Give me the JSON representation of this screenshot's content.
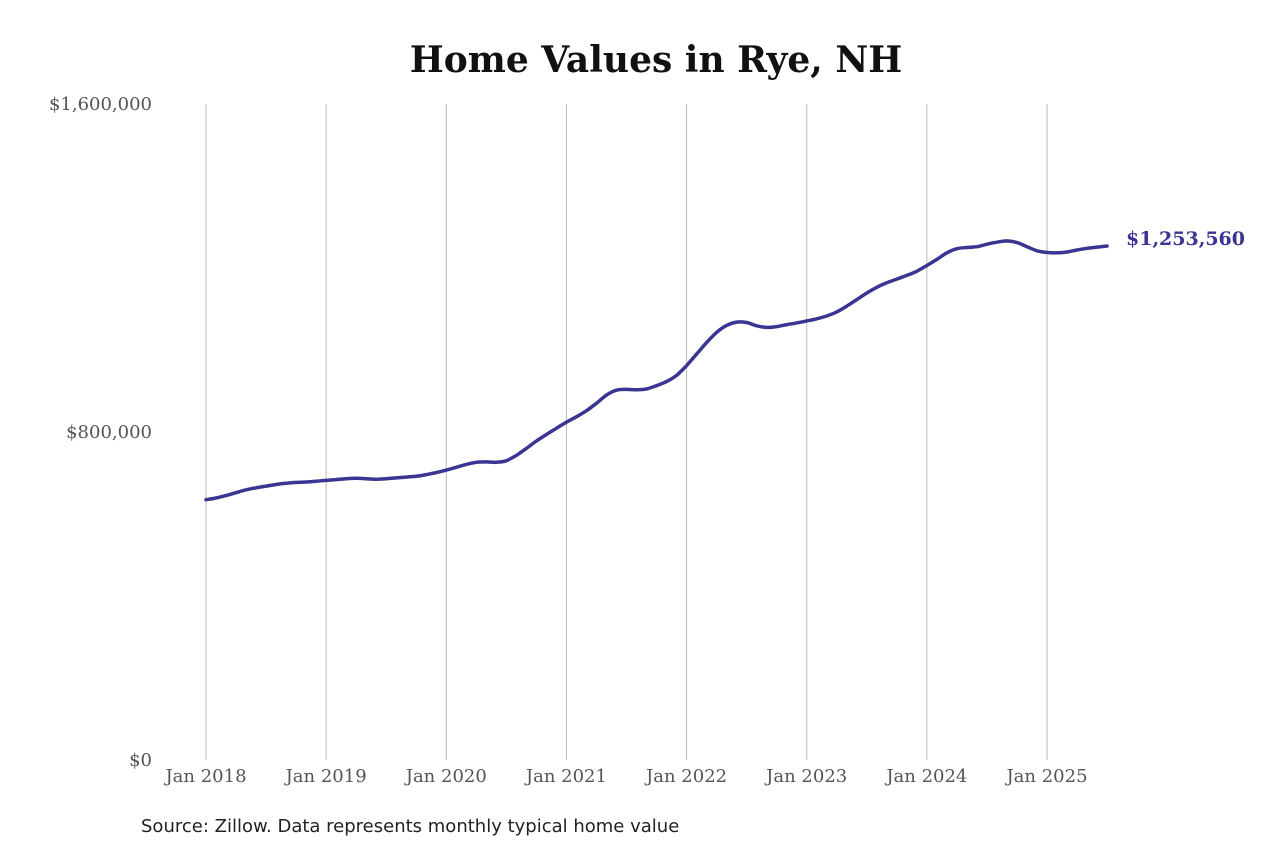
{
  "chart_data": {
    "type": "line",
    "title": "Home Values in Rye, NH",
    "xlabel": "",
    "ylabel": "",
    "ylim": [
      0,
      1600000
    ],
    "y_ticks": [
      {
        "value": 0,
        "label": "$0"
      },
      {
        "value": 800000,
        "label": "$800,000"
      },
      {
        "value": 1600000,
        "label": "$1,600,000"
      }
    ],
    "x_ticks": [
      {
        "value": "2018-01",
        "label": "Jan 2018"
      },
      {
        "value": "2019-01",
        "label": "Jan 2019"
      },
      {
        "value": "2020-01",
        "label": "Jan 2020"
      },
      {
        "value": "2021-01",
        "label": "Jan 2021"
      },
      {
        "value": "2022-01",
        "label": "Jan 2022"
      },
      {
        "value": "2023-01",
        "label": "Jan 2023"
      },
      {
        "value": "2024-01",
        "label": "Jan 2024"
      },
      {
        "value": "2025-01",
        "label": "Jan 2025"
      }
    ],
    "grid": {
      "vertical": true,
      "horizontal": false
    },
    "line_color": "#3a3592",
    "end_label": "$1,253,560",
    "series": [
      {
        "x": [
          "2018-01",
          "2018-02",
          "2018-03",
          "2018-04",
          "2018-05",
          "2018-06",
          "2018-07",
          "2018-08",
          "2018-09",
          "2018-10",
          "2018-11",
          "2018-12",
          "2019-01",
          "2019-02",
          "2019-03",
          "2019-04",
          "2019-05",
          "2019-06",
          "2019-07",
          "2019-08",
          "2019-09",
          "2019-10",
          "2019-11",
          "2019-12",
          "2020-01",
          "2020-02",
          "2020-03",
          "2020-04",
          "2020-05",
          "2020-06",
          "2020-07",
          "2020-08",
          "2020-09",
          "2020-10",
          "2020-11",
          "2020-12",
          "2021-01",
          "2021-02",
          "2021-03",
          "2021-04",
          "2021-05",
          "2021-06",
          "2021-07",
          "2021-08",
          "2021-09",
          "2021-10",
          "2021-11",
          "2021-12",
          "2022-01",
          "2022-02",
          "2022-03",
          "2022-04",
          "2022-05",
          "2022-06",
          "2022-07",
          "2022-08",
          "2022-09",
          "2022-10",
          "2022-11",
          "2022-12",
          "2023-01",
          "2023-02",
          "2023-03",
          "2023-04",
          "2023-05",
          "2023-06",
          "2023-07",
          "2023-08",
          "2023-09",
          "2023-10",
          "2023-11",
          "2023-12",
          "2024-01",
          "2024-02",
          "2024-03",
          "2024-04",
          "2024-05",
          "2024-06",
          "2024-07",
          "2024-08",
          "2024-09",
          "2024-10",
          "2024-11",
          "2024-12",
          "2025-01",
          "2025-02",
          "2025-03",
          "2025-04",
          "2025-05",
          "2025-06",
          "2025-07"
        ],
        "values": [
          635000,
          639000,
          645000,
          652000,
          659000,
          664000,
          668000,
          672000,
          675000,
          677000,
          678000,
          680000,
          682000,
          684000,
          686000,
          687000,
          686000,
          685000,
          686000,
          688000,
          690000,
          692000,
          696000,
          701000,
          707000,
          714000,
          721000,
          726000,
          727000,
          726000,
          730000,
          743000,
          760000,
          778000,
          794000,
          809000,
          824000,
          837000,
          852000,
          870000,
          890000,
          902000,
          904000,
          903000,
          905000,
          913000,
          923000,
          938000,
          962000,
          990000,
          1018000,
          1043000,
          1060000,
          1068000,
          1067000,
          1059000,
          1055000,
          1057000,
          1062000,
          1066000,
          1071000,
          1076000,
          1083000,
          1093000,
          1107000,
          1123000,
          1139000,
          1153000,
          1164000,
          1173000,
          1182000,
          1192000,
          1206000,
          1221000,
          1237000,
          1247000,
          1250000,
          1252000,
          1258000,
          1263000,
          1266000,
          1262000,
          1252000,
          1242000,
          1238000,
          1237000,
          1239000,
          1244000,
          1248000,
          1251000,
          1253560
        ]
      }
    ]
  },
  "footer": {
    "source": "Source: Zillow. Data represents monthly typical home value"
  }
}
